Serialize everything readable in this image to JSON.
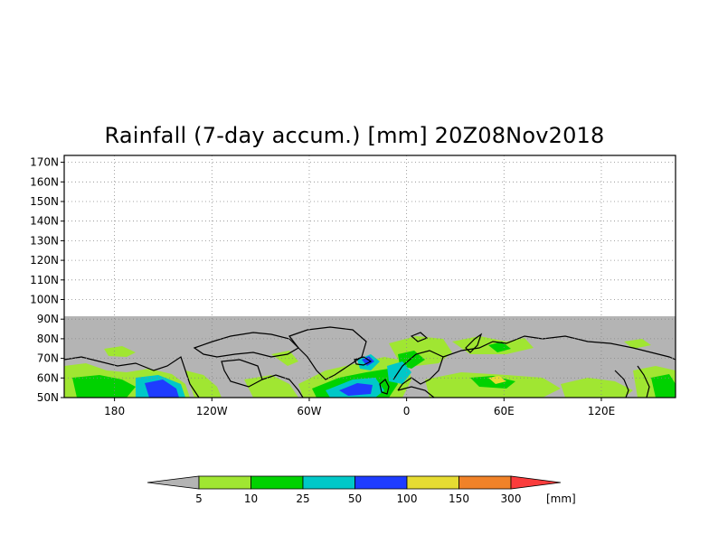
{
  "title": "Rainfall (7-day accum.) [mm] 20Z08Nov2018",
  "map": {
    "lon_range": [
      -150,
      170
    ],
    "lat_range": [
      50,
      175
    ],
    "data_lat_range": [
      50,
      90
    ],
    "y_ticks": [
      "170N",
      "160N",
      "150N",
      "140N",
      "130N",
      "120N",
      "110N",
      "100N",
      "90N",
      "80N",
      "70N",
      "60N",
      "50N"
    ],
    "y_tick_values": [
      170,
      160,
      150,
      140,
      130,
      120,
      110,
      100,
      90,
      80,
      70,
      60,
      50
    ],
    "x_ticks": [
      "180",
      "120W",
      "60W",
      "0",
      "60E",
      "120E"
    ],
    "x_tick_values": [
      180,
      240,
      300,
      360,
      420,
      480
    ],
    "grid": "dotted",
    "no_data_color": "#b4b4b4",
    "coastline_color": "#000000"
  },
  "legend": {
    "unit": "[mm]",
    "labels": [
      "5",
      "10",
      "25",
      "50",
      "100",
      "150",
      "300"
    ],
    "colors": [
      "#b4b4b4",
      "#a0e632",
      "#00d200",
      "#00c8c8",
      "#1e3cff",
      "#e6dc32",
      "#f08228",
      "#fa3c3c"
    ]
  }
}
